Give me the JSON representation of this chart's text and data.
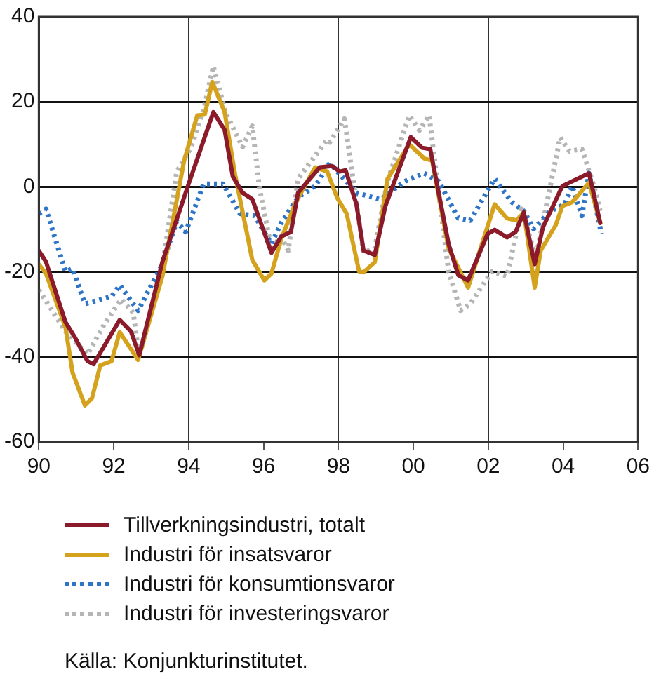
{
  "chart_data": {
    "type": "line",
    "xlim": [
      1990,
      2006
    ],
    "xticks": [
      {
        "value": 1990,
        "label": "90"
      },
      {
        "value": 1992,
        "label": "92"
      },
      {
        "value": 1994,
        "label": "94"
      },
      {
        "value": 1996,
        "label": "96"
      },
      {
        "value": 1998,
        "label": "98"
      },
      {
        "value": 2000,
        "label": "00"
      },
      {
        "value": 2002,
        "label": "02"
      },
      {
        "value": 2004,
        "label": "04"
      },
      {
        "value": 2006,
        "label": "06"
      }
    ],
    "ylim": [
      -60,
      40
    ],
    "yticks": [
      -60,
      -40,
      -20,
      0,
      20,
      40
    ],
    "grid": true,
    "legend": "bottom",
    "marker": "none",
    "annotations": [
      "Källa: Konjunkturinstitutet."
    ],
    "series": [
      {
        "name": "Tillverkningsindustri, totalt",
        "color": "#8b1a2b",
        "line_style": "solid",
        "x": [
          1990.0,
          1990.19,
          1990.71,
          1990.97,
          1991.3,
          1991.46,
          1992.16,
          1992.46,
          1992.68,
          1993.3,
          1994.0,
          1994.66,
          1994.96,
          1995.18,
          1995.44,
          1995.7,
          1996.21,
          1996.47,
          1996.73,
          1996.92,
          1997.5,
          1997.83,
          1998.03,
          1998.19,
          1998.48,
          1998.67,
          1998.97,
          1999.25,
          1999.93,
          2000.23,
          2000.45,
          2000.94,
          2001.2,
          2001.46,
          2001.98,
          2002.17,
          2002.5,
          2002.73,
          2002.95,
          2003.24,
          2003.46,
          2003.98,
          2004.17,
          2004.69,
          2004.99
        ],
        "values": [
          -15,
          -17.6,
          -31.8,
          -35.5,
          -41,
          -41.7,
          -31.3,
          -34,
          -39.6,
          -17.6,
          0.7,
          17.6,
          13.4,
          2.4,
          -1.4,
          -2.9,
          -15.5,
          -11.7,
          -10.6,
          -1.4,
          4.6,
          4.9,
          3.6,
          3.9,
          -4.1,
          -15,
          -16,
          -4.6,
          11.7,
          9.2,
          8.9,
          -13.4,
          -20.8,
          -22,
          -11.1,
          -10.1,
          -11.9,
          -10.6,
          -6,
          -18.2,
          -9.5,
          0.2,
          1,
          3.2,
          -8.5
        ]
      },
      {
        "name": "Industri för insatsvaror",
        "color": "#d4a21c",
        "line_style": "solid",
        "x": [
          1990.0,
          1990.19,
          1990.71,
          1990.9,
          1991.23,
          1991.42,
          1991.64,
          1991.94,
          1992.16,
          1992.65,
          1993.3,
          1993.88,
          1994.23,
          1994.43,
          1994.63,
          1994.96,
          1995.24,
          1995.7,
          1996.02,
          1996.21,
          1996.47,
          1996.86,
          1997.38,
          1997.7,
          1997.96,
          1998.22,
          1998.55,
          1998.67,
          1998.97,
          1999.31,
          1999.89,
          2000.29,
          2000.5,
          2000.94,
          2001.46,
          2002.17,
          2002.5,
          2002.76,
          2002.95,
          2003.24,
          2003.4,
          2003.8,
          2003.98,
          2004.24,
          2004.69,
          2004.99
        ],
        "values": [
          -18.2,
          -20.4,
          -33,
          -43.7,
          -51.4,
          -49.7,
          -42,
          -41,
          -34.2,
          -40.7,
          -21,
          6.2,
          16.8,
          17,
          24.7,
          17.6,
          2.9,
          -17.2,
          -22,
          -20.4,
          -12.3,
          -3.6,
          4.6,
          3.6,
          -2.5,
          -6.3,
          -19.9,
          -20.1,
          -17.7,
          1.9,
          10,
          6.7,
          6.2,
          -14.4,
          -23.7,
          -4.1,
          -7.4,
          -7.9,
          -6,
          -23.7,
          -15,
          -9,
          -4.5,
          -3.6,
          1,
          -8.5
        ]
      },
      {
        "name": "Industri för konsumtionsvaror",
        "color": "#2e75c8",
        "line_style": "dotted",
        "x": [
          1990.0,
          1990.19,
          1990.71,
          1990.9,
          1991.23,
          1991.62,
          1991.94,
          1992.16,
          1992.65,
          1993.3,
          1993.68,
          1993.92,
          1994.4,
          1994.92,
          1995.37,
          1995.76,
          1996.21,
          1996.47,
          1996.92,
          1997.38,
          1997.77,
          1998.48,
          1999.12,
          1999.77,
          2000.29,
          2000.68,
          2001.2,
          2001.52,
          2002.17,
          2002.63,
          2002.95,
          2003.21,
          2003.66,
          2004.04,
          2004.24,
          2004.5,
          2004.69,
          2005.02
        ],
        "values": [
          -6.3,
          -5.2,
          -19.9,
          -19.3,
          -27.5,
          -26.6,
          -25.8,
          -23.1,
          -29.1,
          -18.2,
          -8.1,
          -10.6,
          0.7,
          0.7,
          -6.3,
          -6.8,
          -13.4,
          -8.5,
          -2.5,
          0.2,
          5.6,
          -1.4,
          -3,
          1.3,
          3.2,
          1.3,
          -7.4,
          -7.9,
          1.9,
          -3.6,
          -5.7,
          -9.9,
          -5.7,
          -4.1,
          0.2,
          -6.8,
          3.2,
          -11.1
        ]
      },
      {
        "name": "Industri för investeringsvaror",
        "color": "#b5b5b5",
        "line_style": "dotted",
        "x": [
          1990.0,
          1990.71,
          1991.3,
          1991.75,
          1992.2,
          1992.52,
          1992.68,
          1993.3,
          1993.68,
          1994.07,
          1994.4,
          1994.66,
          1994.98,
          1995.44,
          1995.7,
          1995.89,
          1996.21,
          1996.47,
          1996.66,
          1996.92,
          1997.7,
          1997.77,
          1998.16,
          1998.67,
          1998.97,
          1999.31,
          1999.89,
          2000.16,
          2000.42,
          2000.94,
          2001.26,
          2001.52,
          2002.1,
          2002.5,
          2002.89,
          2003.27,
          2003.92,
          2004.17,
          2004.5,
          2004.82,
          2004.99
        ],
        "values": [
          -24.2,
          -34,
          -39.4,
          -32.3,
          -26.4,
          -29.6,
          -40,
          -18.8,
          3.5,
          9.4,
          18.1,
          28.4,
          17.6,
          9.4,
          14.3,
          -0.3,
          -14.4,
          -11.7,
          -15,
          1.9,
          11.1,
          10.5,
          16,
          -15.5,
          -14.4,
          1.3,
          16.8,
          13.3,
          16.8,
          -19.9,
          -29.1,
          -27.5,
          -19.9,
          -21,
          -5.2,
          -16.6,
          11.6,
          8.4,
          8.9,
          0.2,
          -5.7
        ]
      }
    ]
  }
}
